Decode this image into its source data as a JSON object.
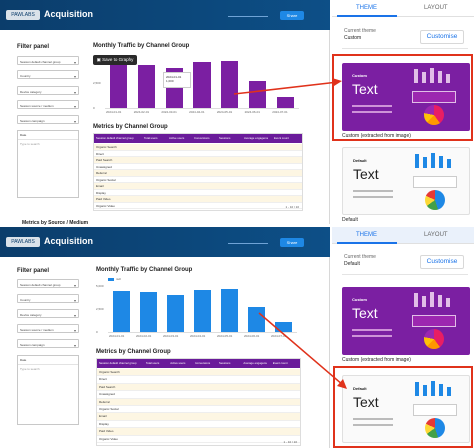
{
  "dashboard": {
    "logo": "PAWLABS",
    "title": "Acquisition",
    "header_link": "www.something.com",
    "header_button": "Share"
  },
  "filters": {
    "title": "Filter panel",
    "items": [
      "Session default channel group",
      "Country",
      "Device category",
      "Session source / medium",
      "Session campaign"
    ],
    "date_label": "Date",
    "search_placeholder": "Type to search"
  },
  "chart": {
    "title": "Monthly Traffic by Channel Group",
    "save_button": "Save to Graphy",
    "legend": "null",
    "tooltip_line1": "2024-01-01",
    "tooltip_line2": "1,000",
    "colors": {
      "top": "#7b1fa2",
      "bottom": "#1e88e5"
    }
  },
  "chart_data": {
    "type": "bar",
    "categories": [
      "2024-01-01",
      "2024-02-01",
      "2024-03-01",
      "2024-04-01",
      "2024-05-01",
      "2024-06-01",
      "2024-07-01"
    ],
    "values": [
      4500,
      4300,
      4000,
      4600,
      4700,
      2700,
      1100
    ],
    "ylim": [
      0,
      5000
    ]
  },
  "table": {
    "title": "Metrics by Channel Group",
    "headers": [
      "Session default channel group",
      "Total users",
      "Active users",
      "Conversions",
      "Sessions",
      "Average engagement time per session",
      "Event count"
    ],
    "rows": [
      "Organic Search",
      "Direct",
      "Paid Search",
      "Unassigned",
      "Referral",
      "Organic Social",
      "Email",
      "Display",
      "Paid Video",
      "Organic Video"
    ],
    "pager": "1 - 10 / 10",
    "header_color": "#6a1b9a"
  },
  "bottom_section": {
    "label": "Metrics by Source / Medium"
  },
  "theme_panel": {
    "tabs": [
      "THEME",
      "LAYOUT"
    ],
    "current_theme_label": "Current theme",
    "top_current": "Custom",
    "bottom_current": "Default",
    "customise": "Customise",
    "custom_card_title": "Custom",
    "custom_card_text": "Text",
    "custom_card_label": "Custom (extracted from image)",
    "default_card_title": "Default",
    "default_card_text": "Text",
    "default_card_label": "Default"
  }
}
